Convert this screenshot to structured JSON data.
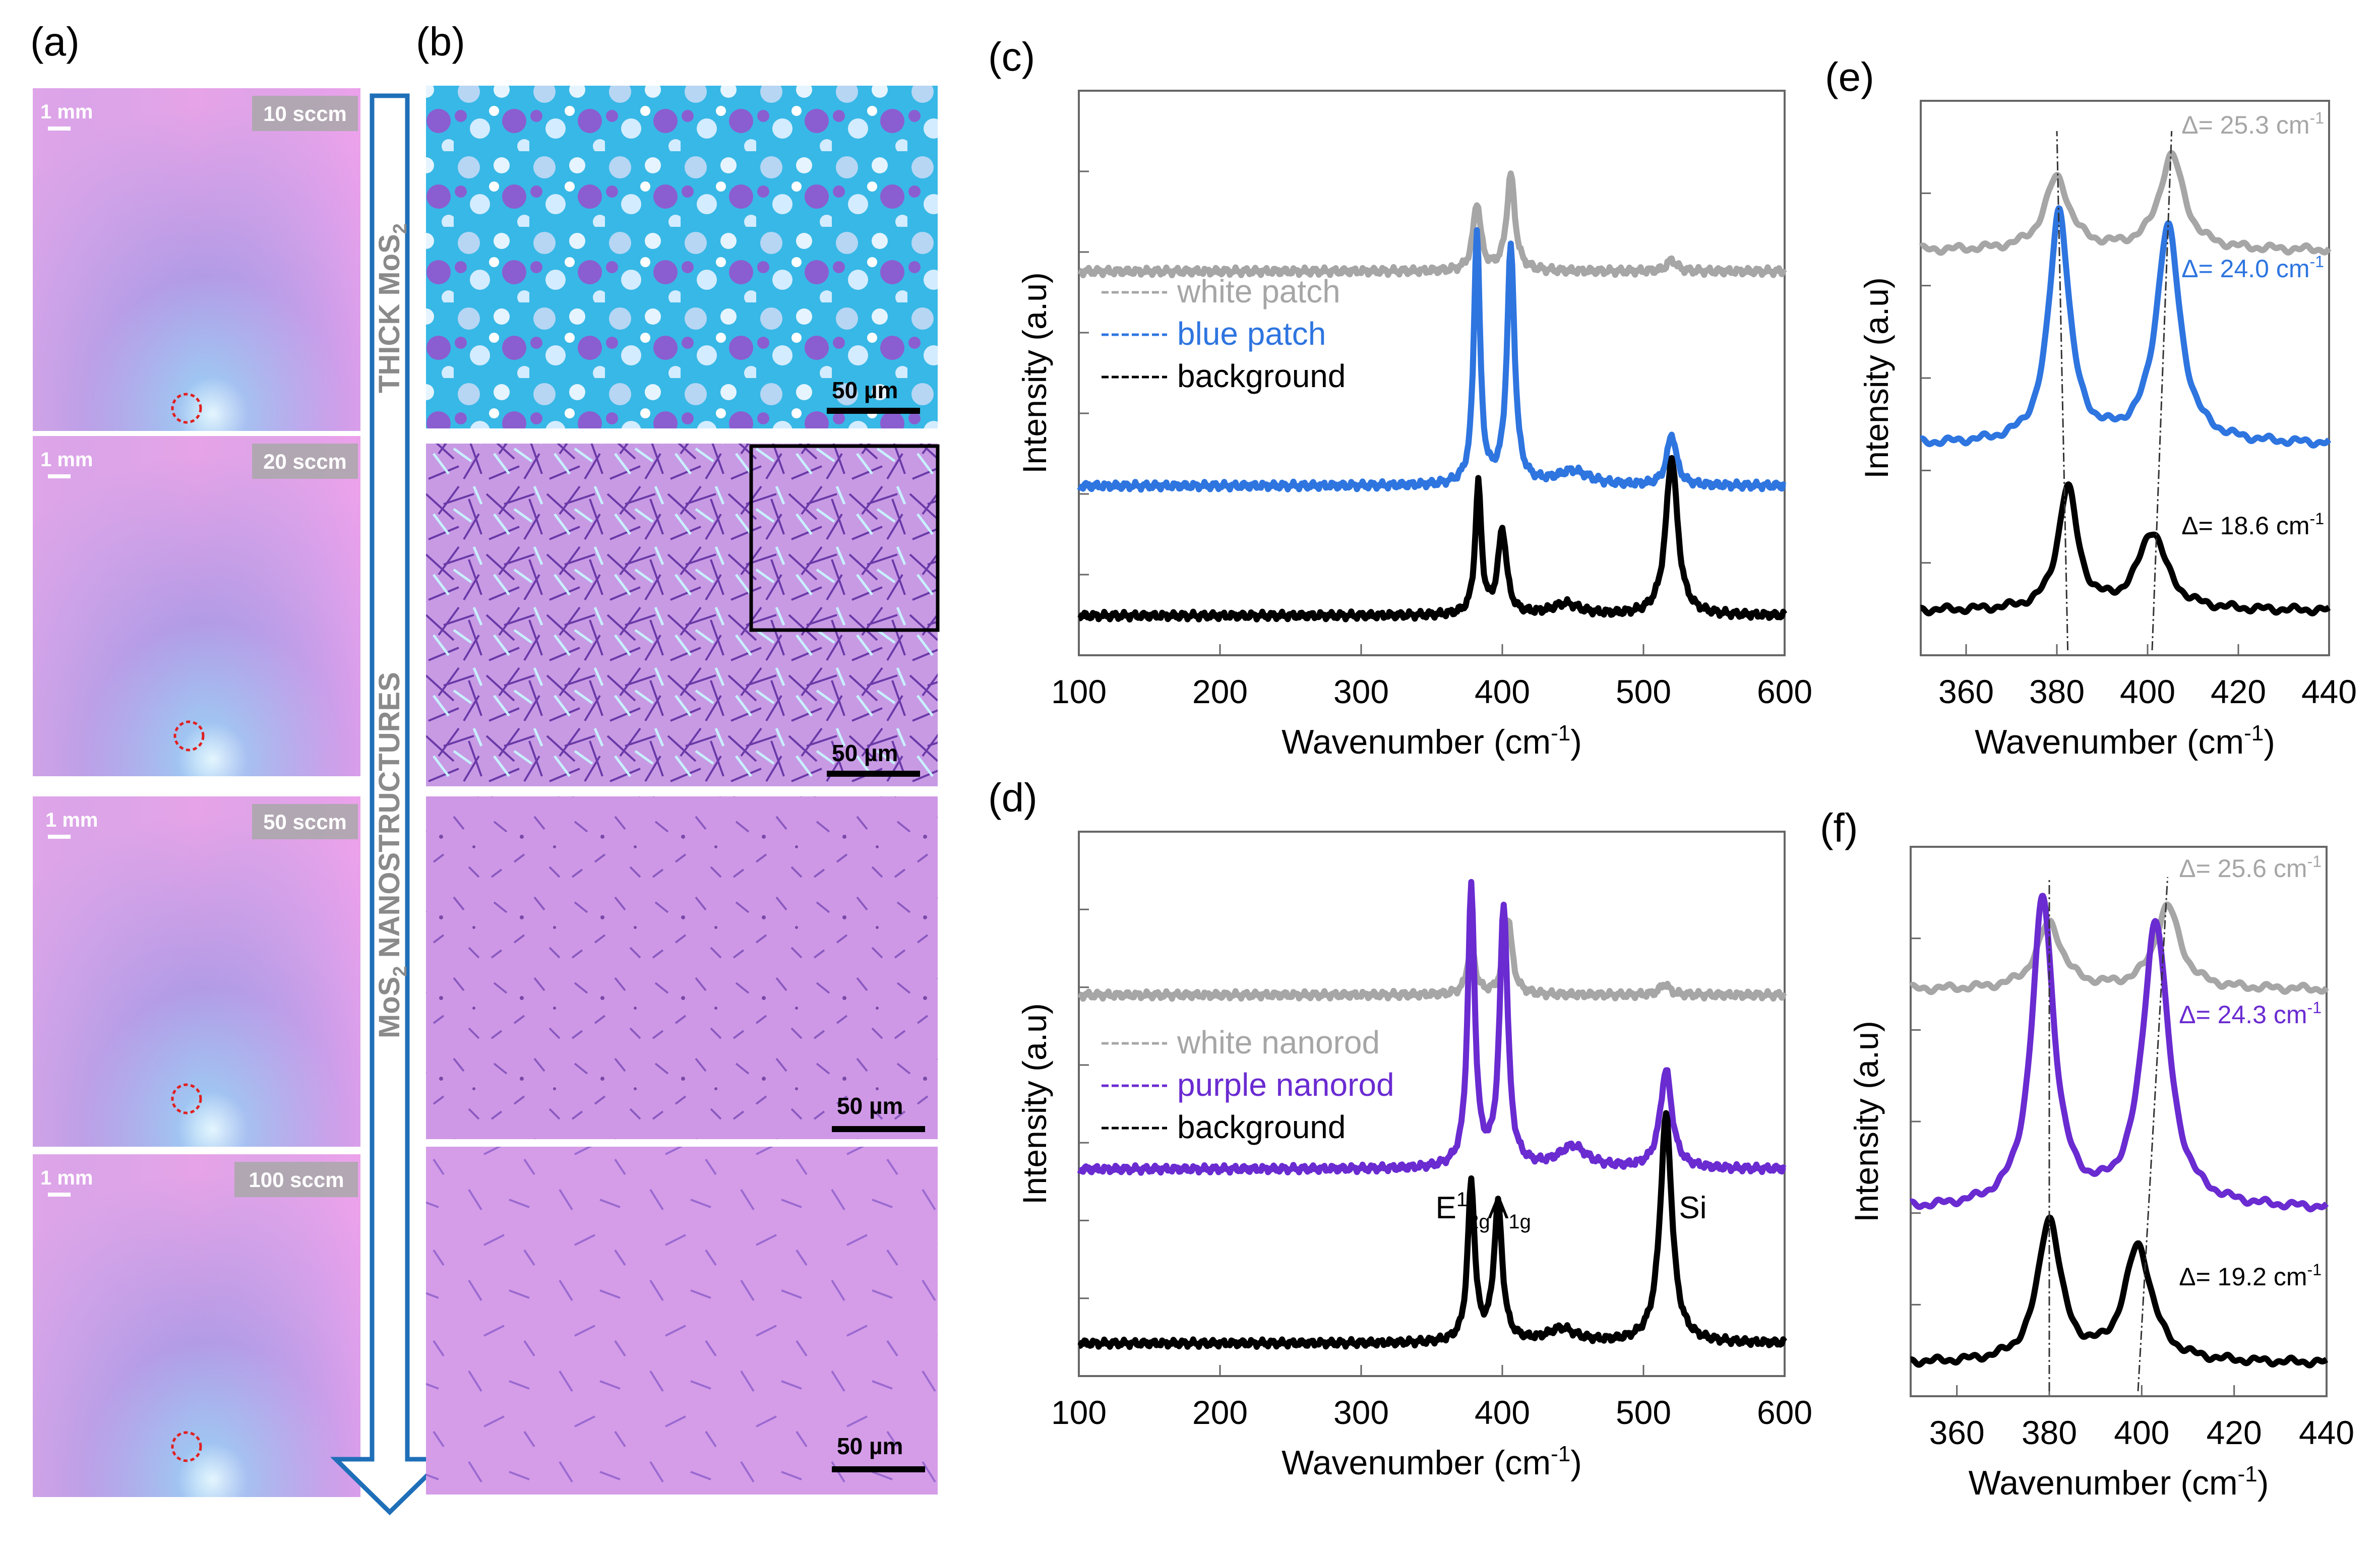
{
  "figure": {
    "panel_a": {
      "label": "(a)",
      "scale_text": "1 mm",
      "images": [
        {
          "flow": "10 sccm"
        },
        {
          "flow": "20 sccm"
        },
        {
          "flow": "50 sccm"
        },
        {
          "flow": "100 sccm"
        }
      ]
    },
    "arrow": {
      "top_label": "THICK MoS",
      "top_sub": "2",
      "bottom_label_a": "MoS",
      "bottom_sub": "2",
      "bottom_label_b": " NANOSTRUCTURES"
    },
    "panel_b": {
      "label": "(b)",
      "scale_text": "50 µm"
    },
    "colors": {
      "white": "#a6a6a6",
      "blue": "#2e75e0",
      "purple": "#6a2bd1",
      "black": "#000000"
    }
  },
  "chart_data": [
    {
      "id": "c",
      "label": "(c)",
      "type": "line",
      "xlabel": "Wavenumber (cm",
      "xlabel_sup": "-1",
      "xlabel_tail": ")",
      "ylabel": "Intensity (a.u)",
      "xlim": [
        100,
        600
      ],
      "xticks": [
        "100",
        "200",
        "300",
        "400",
        "500",
        "600"
      ],
      "legend": [
        "white patch",
        "blue patch",
        "background"
      ],
      "series": [
        {
          "name": "white patch",
          "color": "#a6a6a6",
          "offset": 0.68,
          "peaks": [
            {
              "x": 382,
              "h": 0.12,
              "w": 3.2
            },
            {
              "x": 406,
              "h": 0.17,
              "w": 3.5
            },
            {
              "x": 520,
              "h": 0.02,
              "w": 4
            }
          ]
        },
        {
          "name": "blue patch",
          "color": "#2e75e0",
          "offset": 0.3,
          "peaks": [
            {
              "x": 382,
              "h": 0.45,
              "w": 2.6
            },
            {
              "x": 406,
              "h": 0.42,
              "w": 3.2
            },
            {
              "x": 450,
              "h": 0.025,
              "w": 14
            },
            {
              "x": 520,
              "h": 0.09,
              "w": 4
            }
          ]
        },
        {
          "name": "background",
          "color": "#000000",
          "offset": 0.07,
          "peaks": [
            {
              "x": 383,
              "h": 0.23,
              "w": 2.6
            },
            {
              "x": 400,
              "h": 0.15,
              "w": 3.6
            },
            {
              "x": 445,
              "h": 0.02,
              "w": 12
            },
            {
              "x": 520,
              "h": 0.28,
              "w": 5
            }
          ]
        }
      ]
    },
    {
      "id": "d",
      "label": "(d)",
      "type": "line",
      "xlabel": "Wavenumber (cm",
      "xlabel_sup": "-1",
      "xlabel_tail": ")",
      "ylabel": "Intensity (a.u)",
      "xlim": [
        100,
        600
      ],
      "xticks": [
        "100",
        "200",
        "300",
        "400",
        "500",
        "600"
      ],
      "legend": [
        "white nanorod",
        "purple nanorod",
        "background"
      ],
      "annotations": [
        {
          "text": "E",
          "sup": "1",
          "sub": "2g",
          "x": 372,
          "y": 0.29
        },
        {
          "text": "A",
          "sub": "1g",
          "x": 405,
          "y": 0.29
        },
        {
          "text": "Si",
          "x": 535,
          "y": 0.29
        }
      ],
      "series": [
        {
          "name": "white nanorod",
          "color": "#a6a6a6",
          "offset": 0.7,
          "peaks": [
            {
              "x": 378,
              "h": 0.09,
              "w": 3.2
            },
            {
              "x": 404,
              "h": 0.14,
              "w": 3.5
            },
            {
              "x": 515,
              "h": 0.02,
              "w": 4
            }
          ]
        },
        {
          "name": "purple nanorod",
          "color": "#6a2bd1",
          "offset": 0.38,
          "peaks": [
            {
              "x": 378,
              "h": 0.51,
              "w": 3.0
            },
            {
              "x": 401,
              "h": 0.48,
              "w": 3.4
            },
            {
              "x": 450,
              "h": 0.04,
              "w": 12
            },
            {
              "x": 516,
              "h": 0.18,
              "w": 5
            }
          ]
        },
        {
          "name": "background",
          "color": "#000000",
          "offset": 0.06,
          "peaks": [
            {
              "x": 378,
              "h": 0.29,
              "w": 3.0
            },
            {
              "x": 397,
              "h": 0.25,
              "w": 3.6
            },
            {
              "x": 442,
              "h": 0.025,
              "w": 12
            },
            {
              "x": 516,
              "h": 0.42,
              "w": 5
            }
          ]
        }
      ]
    },
    {
      "id": "e",
      "label": "(e)",
      "type": "line",
      "xlabel": "Wavenumber (cm",
      "xlabel_sup": "-1",
      "xlabel_tail": ")",
      "ylabel": "Intensity (a.u)",
      "xlim": [
        350,
        440
      ],
      "xticks": [
        "360",
        "380",
        "400",
        "420",
        "440"
      ],
      "deltas": [
        {
          "text": "Δ= 25.3 cm",
          "sup": "-1",
          "color": "#a6a6a6"
        },
        {
          "text": "Δ= 24.0 cm",
          "sup": "-1",
          "color": "#2e75e0"
        },
        {
          "text": "Δ= 18.6 cm",
          "sup": "-1",
          "color": "#000000"
        }
      ],
      "series": [
        {
          "name": "white patch",
          "color": "#a6a6a6",
          "offset": 0.73,
          "peaks": [
            {
              "x": 380,
              "h": 0.13,
              "w": 3.3
            },
            {
              "x": 405.3,
              "h": 0.17,
              "w": 3.3
            }
          ]
        },
        {
          "name": "blue patch",
          "color": "#2e75e0",
          "offset": 0.38,
          "peaks": [
            {
              "x": 380.5,
              "h": 0.42,
              "w": 2.7
            },
            {
              "x": 404.5,
              "h": 0.39,
              "w": 3.2
            }
          ]
        },
        {
          "name": "background",
          "color": "#000000",
          "offset": 0.08,
          "peaks": [
            {
              "x": 382.4,
              "h": 0.22,
              "w": 2.6
            },
            {
              "x": 401,
              "h": 0.14,
              "w": 3.8
            }
          ]
        }
      ],
      "guides": [
        [
          382.4,
          380
        ],
        [
          401,
          405.3
        ]
      ]
    },
    {
      "id": "f",
      "label": "(f)",
      "type": "line",
      "xlabel": "Wavenumber (cm",
      "xlabel_sup": "-1",
      "xlabel_tail": ")",
      "ylabel": "Intensity (a.u)",
      "xlim": [
        350,
        440
      ],
      "xticks": [
        "360",
        "380",
        "400",
        "420",
        "440"
      ],
      "deltas": [
        {
          "text": "Δ= 25.6 cm",
          "sup": "-1",
          "color": "#a6a6a6"
        },
        {
          "text": "Δ= 24.3 cm",
          "sup": "-1",
          "color": "#6a2bd1"
        },
        {
          "text": "Δ= 19.2 cm",
          "sup": "-1",
          "color": "#000000"
        }
      ],
      "series": [
        {
          "name": "white nanorod",
          "color": "#a6a6a6",
          "offset": 0.74,
          "peaks": [
            {
              "x": 380,
              "h": 0.12,
              "w": 3.3
            },
            {
              "x": 405.6,
              "h": 0.15,
              "w": 3.3
            }
          ]
        },
        {
          "name": "purple nanorod",
          "color": "#6a2bd1",
          "offset": 0.34,
          "peaks": [
            {
              "x": 378.6,
              "h": 0.56,
              "w": 2.9
            },
            {
              "x": 403,
              "h": 0.52,
              "w": 3.4
            }
          ]
        },
        {
          "name": "background",
          "color": "#000000",
          "offset": 0.06,
          "peaks": [
            {
              "x": 380,
              "h": 0.26,
              "w": 3.0
            },
            {
              "x": 399.2,
              "h": 0.21,
              "w": 3.6
            }
          ]
        }
      ],
      "guides": [
        [
          380,
          380
        ],
        [
          399.2,
          405.6
        ]
      ]
    }
  ]
}
